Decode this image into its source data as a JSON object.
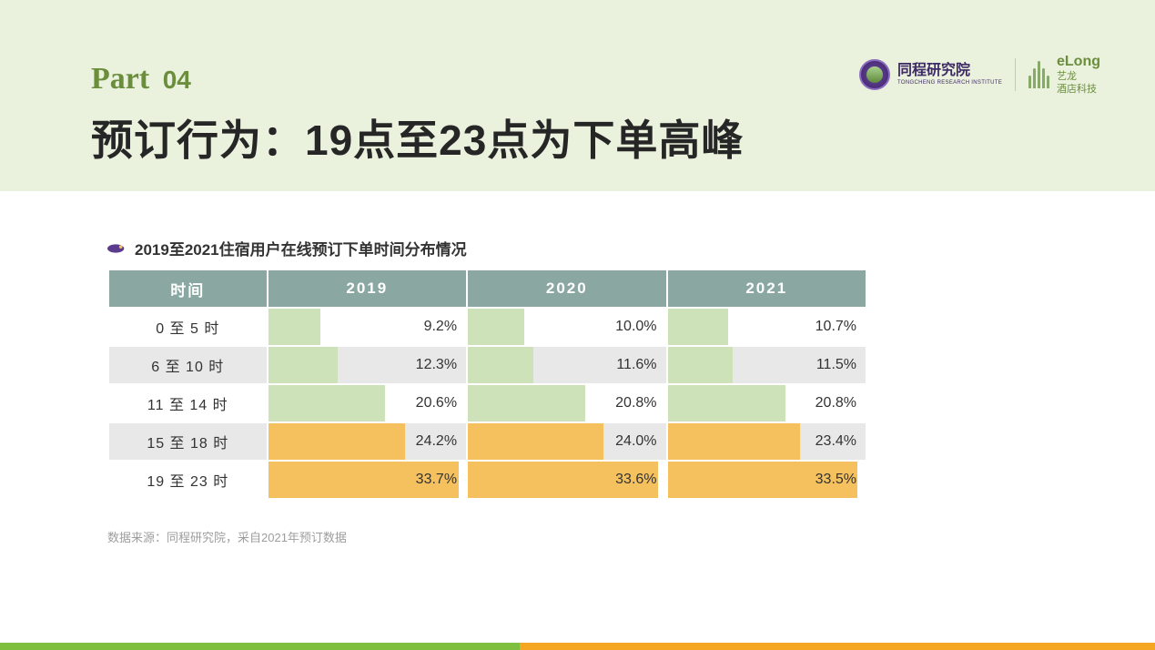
{
  "header": {
    "part_label": "Part",
    "part_number": "04",
    "title": "预订行为：19点至23点为下单高峰"
  },
  "logos": {
    "tongcheng_cn": "同程研究院",
    "tongcheng_en": "TONGCHENG RESEARCH INSTITUTE",
    "elong_en": "eLong",
    "elong_cn_line1": "艺龙",
    "elong_cn_line2": "酒店科技"
  },
  "subtitle": "2019至2021住宿用户在线预订下单时间分布情况",
  "source_note": "数据来源：同程研究院，采自2021年预订数据",
  "table": {
    "type": "table-with-bars",
    "header_bg": "#8aa8a1",
    "header_fg": "#ffffff",
    "row_bg": "#ffffff",
    "row_alt_bg": "#e8e8e8",
    "bar_color_low": "#cde2b8",
    "bar_color_high": "#f5c15e",
    "bar_max_value": 35.0,
    "font_size": 16,
    "columns": [
      "时间",
      "2019",
      "2020",
      "2021"
    ],
    "rows": [
      {
        "label": "0 至 5 时",
        "shade": false,
        "color_key": "low",
        "values": [
          9.2,
          10.0,
          10.7
        ],
        "display": [
          "9.2%",
          "10.0%",
          "10.7%"
        ]
      },
      {
        "label": "6 至 10 时",
        "shade": true,
        "color_key": "low",
        "values": [
          12.3,
          11.6,
          11.5
        ],
        "display": [
          "12.3%",
          "11.6%",
          "11.5%"
        ]
      },
      {
        "label": "11 至 14 时",
        "shade": false,
        "color_key": "low",
        "values": [
          20.6,
          20.8,
          20.8
        ],
        "display": [
          "20.6%",
          "20.8%",
          "20.8%"
        ]
      },
      {
        "label": "15 至 18 时",
        "shade": true,
        "color_key": "high",
        "values": [
          24.2,
          24.0,
          23.4
        ],
        "display": [
          "24.2%",
          "24.0%",
          "23.4%"
        ]
      },
      {
        "label": "19 至 23 时",
        "shade": false,
        "color_key": "high",
        "values": [
          33.7,
          33.6,
          33.5
        ],
        "display": [
          "33.7%",
          "33.6%",
          "33.5%"
        ]
      }
    ]
  },
  "footer_bar": {
    "left_color": "#7fbf3f",
    "right_color": "#f5a623"
  }
}
